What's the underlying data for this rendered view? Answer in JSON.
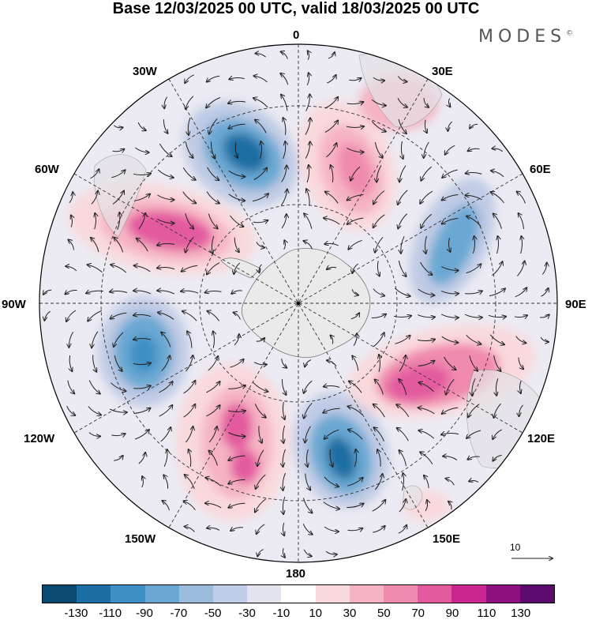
{
  "title": "Base 12/03/2025 00 UTC, valid 18/03/2025 00 UTC",
  "brand": {
    "name": "MODES",
    "mark": "©"
  },
  "longitude_labels": {
    "n0": "0",
    "e30": "30E",
    "e60": "60E",
    "e90": "90E",
    "e120": "120E",
    "e150": "150E",
    "s180": "180",
    "w150": "150W",
    "w120": "120W",
    "w90": "90W",
    "w60": "60W",
    "w30": "30W"
  },
  "reference_vector": {
    "label": "10"
  },
  "colorbar": {
    "colors": [
      "#0b4a70",
      "#1b6ea3",
      "#3d8fc5",
      "#6aa8d3",
      "#9bbcdd",
      "#c0cbe5",
      "#e3e4f0",
      "#ffffff",
      "#f9d9dc",
      "#f6b4c3",
      "#f08aae",
      "#e35a9f",
      "#c9268f",
      "#8e0f7f",
      "#5c0a6e"
    ],
    "tick_labels": [
      "-130",
      "-110",
      "-90",
      "-70",
      "-50",
      "-30",
      "-10",
      "10",
      "30",
      "50",
      "70",
      "90",
      "110",
      "130"
    ]
  }
}
